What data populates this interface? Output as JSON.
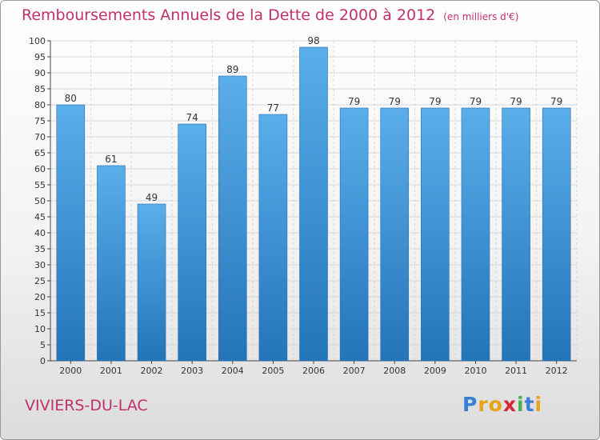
{
  "chart_data": {
    "type": "bar",
    "title": "Remboursements Annuels de la Dette de 2000 à 2012",
    "unit": "(en milliers d'€)",
    "categories": [
      "2000",
      "2001",
      "2002",
      "2003",
      "2004",
      "2005",
      "2006",
      "2007",
      "2008",
      "2009",
      "2010",
      "2011",
      "2012"
    ],
    "values": [
      80,
      61,
      49,
      74,
      89,
      77,
      98,
      79,
      79,
      79,
      79,
      79,
      79
    ],
    "ylim": [
      0,
      100
    ],
    "yticks": [
      0,
      5,
      10,
      15,
      20,
      25,
      30,
      35,
      40,
      45,
      50,
      55,
      60,
      65,
      70,
      75,
      80,
      85,
      90,
      95,
      100
    ],
    "grid": true,
    "bar_color": "#3d8fd6"
  },
  "footer": {
    "commune": "VIVIERS-DU-LAC",
    "brand": "Proxiti"
  }
}
